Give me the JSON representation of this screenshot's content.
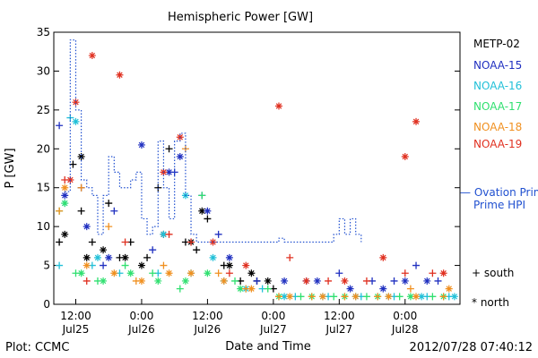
{
  "chart_data": {
    "type": "scatter",
    "title": "Hemispheric Power [GW]",
    "xlabel": "Date and Time",
    "ylabel": "P [GW]",
    "ylim": [
      0,
      35
    ],
    "y_ticks": [
      0,
      5,
      10,
      15,
      20,
      25,
      30,
      35
    ],
    "xlim": [
      "2012-07-25T08:00",
      "2012-07-28T10:00"
    ],
    "x_tick_labels": [
      {
        "time": "2012-07-25T12:00",
        "top": "12:00",
        "bottom": "Jul25"
      },
      {
        "time": "2012-07-26T00:00",
        "top": "0:00",
        "bottom": "Jul26"
      },
      {
        "time": "2012-07-26T12:00",
        "top": "12:00",
        "bottom": "Jul26"
      },
      {
        "time": "2012-07-27T00:00",
        "top": "0:00",
        "bottom": "Jul27"
      },
      {
        "time": "2012-07-27T12:00",
        "top": "12:00",
        "bottom": "Jul27"
      },
      {
        "time": "2012-07-28T00:00",
        "top": "0:00",
        "bottom": "Jul28"
      }
    ],
    "grid": false,
    "legend_position": "right",
    "series": [
      {
        "name": "METP-02",
        "color": "#000000",
        "plus": [
          [
            "2012-07-25T09:00",
            8
          ],
          [
            "2012-07-25T11:30",
            18
          ],
          [
            "2012-07-25T13:00",
            12
          ],
          [
            "2012-07-25T15:00",
            8
          ],
          [
            "2012-07-25T18:00",
            13
          ],
          [
            "2012-07-25T20:00",
            6
          ],
          [
            "2012-07-25T22:00",
            8
          ],
          [
            "2012-07-26T01:00",
            6
          ],
          [
            "2012-07-26T03:00",
            15
          ],
          [
            "2012-07-26T05:00",
            20
          ],
          [
            "2012-07-26T08:00",
            8
          ],
          [
            "2012-07-26T10:00",
            7
          ],
          [
            "2012-07-26T12:00",
            11
          ],
          [
            "2012-07-26T15:00",
            5
          ],
          [
            "2012-07-26T18:00",
            3
          ],
          [
            "2012-07-26T21:00",
            3
          ],
          [
            "2012-07-27T00:00",
            2
          ]
        ],
        "star": [
          [
            "2012-07-25T10:00",
            9
          ],
          [
            "2012-07-25T13:00",
            19
          ],
          [
            "2012-07-25T14:00",
            6
          ],
          [
            "2012-07-25T17:00",
            7
          ],
          [
            "2012-07-25T21:00",
            6
          ],
          [
            "2012-07-26T00:00",
            5
          ],
          [
            "2012-07-26T04:00",
            9
          ],
          [
            "2012-07-26T09:00",
            8
          ],
          [
            "2012-07-26T11:00",
            12
          ],
          [
            "2012-07-26T16:00",
            5
          ],
          [
            "2012-07-26T20:00",
            4
          ],
          [
            "2012-07-26T23:00",
            3
          ]
        ]
      },
      {
        "name": "NOAA-15",
        "color": "#2030c0",
        "plus": [
          [
            "2012-07-25T09:00",
            23
          ],
          [
            "2012-07-25T13:00",
            15
          ],
          [
            "2012-07-25T17:00",
            5
          ],
          [
            "2012-07-25T19:00",
            12
          ],
          [
            "2012-07-26T02:00",
            7
          ],
          [
            "2012-07-26T06:00",
            17
          ],
          [
            "2012-07-26T11:00",
            14
          ],
          [
            "2012-07-26T14:00",
            9
          ],
          [
            "2012-07-26T21:00",
            3
          ],
          [
            "2012-07-27T06:00",
            3
          ],
          [
            "2012-07-27T12:00",
            4
          ],
          [
            "2012-07-27T18:00",
            3
          ],
          [
            "2012-07-27T22:00",
            3
          ],
          [
            "2012-07-28T02:00",
            5
          ],
          [
            "2012-07-28T06:00",
            3
          ]
        ],
        "star": [
          [
            "2012-07-25T10:00",
            14
          ],
          [
            "2012-07-25T14:00",
            10
          ],
          [
            "2012-07-25T18:00",
            6
          ],
          [
            "2012-07-26T00:00",
            20.5
          ],
          [
            "2012-07-26T05:00",
            17
          ],
          [
            "2012-07-26T07:00",
            19
          ],
          [
            "2012-07-26T12:00",
            12
          ],
          [
            "2012-07-26T16:00",
            6
          ],
          [
            "2012-07-27T02:00",
            3
          ],
          [
            "2012-07-27T08:00",
            3
          ],
          [
            "2012-07-27T14:00",
            2
          ],
          [
            "2012-07-27T20:00",
            2
          ],
          [
            "2012-07-28T00:00",
            3
          ],
          [
            "2012-07-28T04:00",
            3
          ]
        ]
      },
      {
        "name": "NOAA-16",
        "color": "#22c0d8",
        "plus": [
          [
            "2012-07-25T09:00",
            5
          ],
          [
            "2012-07-25T11:00",
            24
          ],
          [
            "2012-07-25T15:00",
            5
          ],
          [
            "2012-07-25T20:00",
            4
          ],
          [
            "2012-07-26T03:00",
            4
          ],
          [
            "2012-07-26T09:00",
            4
          ],
          [
            "2012-07-26T15:00",
            3
          ],
          [
            "2012-07-26T22:00",
            2
          ],
          [
            "2012-07-27T04:00",
            1
          ],
          [
            "2012-07-27T10:00",
            1
          ],
          [
            "2012-07-27T16:00",
            1
          ],
          [
            "2012-07-27T22:00",
            1
          ],
          [
            "2012-07-28T04:00",
            1
          ],
          [
            "2012-07-28T08:00",
            1
          ]
        ],
        "star": [
          [
            "2012-07-25T10:00",
            13
          ],
          [
            "2012-07-25T12:00",
            23.5
          ],
          [
            "2012-07-25T16:00",
            6
          ],
          [
            "2012-07-26T04:00",
            9
          ],
          [
            "2012-07-26T08:00",
            14
          ],
          [
            "2012-07-26T13:00",
            6
          ],
          [
            "2012-07-26T19:00",
            2
          ],
          [
            "2012-07-27T02:00",
            1
          ],
          [
            "2012-07-27T09:00",
            1
          ],
          [
            "2012-07-27T15:00",
            1
          ],
          [
            "2012-07-27T21:00",
            1
          ],
          [
            "2012-07-28T03:00",
            1
          ],
          [
            "2012-07-28T09:00",
            1
          ]
        ]
      },
      {
        "name": "NOAA-17",
        "color": "#30e070",
        "plus": [
          [
            "2012-07-25T09:00",
            12
          ],
          [
            "2012-07-25T12:00",
            4
          ],
          [
            "2012-07-25T16:00",
            3
          ],
          [
            "2012-07-25T21:00",
            5
          ],
          [
            "2012-07-26T02:00",
            4
          ],
          [
            "2012-07-26T07:00",
            2
          ],
          [
            "2012-07-26T11:00",
            14
          ],
          [
            "2012-07-26T17:00",
            3
          ],
          [
            "2012-07-26T23:00",
            2
          ],
          [
            "2012-07-27T05:00",
            1
          ],
          [
            "2012-07-27T11:00",
            1
          ],
          [
            "2012-07-27T17:00",
            1
          ],
          [
            "2012-07-27T23:00",
            1
          ],
          [
            "2012-07-28T05:00",
            1
          ]
        ],
        "star": [
          [
            "2012-07-25T10:00",
            13
          ],
          [
            "2012-07-25T13:00",
            4
          ],
          [
            "2012-07-25T17:00",
            3
          ],
          [
            "2012-07-25T22:00",
            4
          ],
          [
            "2012-07-26T03:00",
            3
          ],
          [
            "2012-07-26T08:00",
            3
          ],
          [
            "2012-07-26T12:00",
            4
          ],
          [
            "2012-07-26T18:00",
            2
          ],
          [
            "2012-07-27T01:00",
            1
          ],
          [
            "2012-07-27T07:00",
            1
          ],
          [
            "2012-07-27T13:00",
            1
          ],
          [
            "2012-07-27T19:00",
            1
          ],
          [
            "2012-07-28T01:00",
            1
          ],
          [
            "2012-07-28T07:00",
            1
          ]
        ]
      },
      {
        "name": "NOAA-18",
        "color": "#f09020",
        "plus": [
          [
            "2012-07-25T09:00",
            12
          ],
          [
            "2012-07-25T13:00",
            15
          ],
          [
            "2012-07-25T18:00",
            10
          ],
          [
            "2012-07-25T23:00",
            3
          ],
          [
            "2012-07-26T04:00",
            5
          ],
          [
            "2012-07-26T08:00",
            20
          ],
          [
            "2012-07-26T14:00",
            4
          ],
          [
            "2012-07-26T19:00",
            2
          ],
          [
            "2012-07-27T01:00",
            1
          ],
          [
            "2012-07-27T07:00",
            1
          ],
          [
            "2012-07-27T13:00",
            1
          ],
          [
            "2012-07-27T19:00",
            1
          ],
          [
            "2012-07-28T01:00",
            2
          ],
          [
            "2012-07-28T07:00",
            1
          ]
        ],
        "star": [
          [
            "2012-07-25T10:00",
            15
          ],
          [
            "2012-07-25T14:00",
            5
          ],
          [
            "2012-07-25T19:00",
            4
          ],
          [
            "2012-07-26T00:00",
            3
          ],
          [
            "2012-07-26T05:00",
            4
          ],
          [
            "2012-07-26T09:00",
            4
          ],
          [
            "2012-07-26T15:00",
            3
          ],
          [
            "2012-07-26T20:00",
            2
          ],
          [
            "2012-07-27T03:00",
            1
          ],
          [
            "2012-07-27T09:00",
            1
          ],
          [
            "2012-07-27T15:00",
            1
          ],
          [
            "2012-07-27T21:00",
            1
          ],
          [
            "2012-07-28T02:00",
            1
          ],
          [
            "2012-07-28T08:00",
            2
          ]
        ]
      },
      {
        "name": "NOAA-19",
        "color": "#e03020",
        "plus": [
          [
            "2012-07-25T10:00",
            16
          ],
          [
            "2012-07-25T14:00",
            3
          ],
          [
            "2012-07-25T21:00",
            8
          ],
          [
            "2012-07-26T05:00",
            9
          ],
          [
            "2012-07-26T09:00",
            8
          ],
          [
            "2012-07-26T16:00",
            4
          ],
          [
            "2012-07-27T03:00",
            6
          ],
          [
            "2012-07-27T10:00",
            3
          ],
          [
            "2012-07-27T17:00",
            3
          ],
          [
            "2012-07-28T00:00",
            4
          ],
          [
            "2012-07-28T05:00",
            4
          ]
        ],
        "star": [
          [
            "2012-07-25T11:00",
            16
          ],
          [
            "2012-07-25T12:00",
            26
          ],
          [
            "2012-07-25T15:00",
            32
          ],
          [
            "2012-07-25T20:00",
            29.5
          ],
          [
            "2012-07-26T04:00",
            17
          ],
          [
            "2012-07-26T07:00",
            21.5
          ],
          [
            "2012-07-26T13:00",
            8
          ],
          [
            "2012-07-26T19:00",
            5
          ],
          [
            "2012-07-27T01:00",
            25.5
          ],
          [
            "2012-07-27T06:00",
            3
          ],
          [
            "2012-07-27T13:00",
            3
          ],
          [
            "2012-07-27T20:00",
            6
          ],
          [
            "2012-07-28T00:00",
            19
          ],
          [
            "2012-07-28T02:00",
            23.5
          ],
          [
            "2012-07-28T07:00",
            4
          ]
        ]
      },
      {
        "name": "— Ovation Prime HPI",
        "color": "#2050d0",
        "style": "dotted-step",
        "line": [
          [
            "2012-07-25T10:00",
            14.5
          ],
          [
            "2012-07-25T11:00",
            34
          ],
          [
            "2012-07-25T12:00",
            25
          ],
          [
            "2012-07-25T13:00",
            16
          ],
          [
            "2012-07-25T14:00",
            15
          ],
          [
            "2012-07-25T15:00",
            14
          ],
          [
            "2012-07-25T16:00",
            9
          ],
          [
            "2012-07-25T17:00",
            14
          ],
          [
            "2012-07-25T18:00",
            19
          ],
          [
            "2012-07-25T19:00",
            17
          ],
          [
            "2012-07-25T20:00",
            15
          ],
          [
            "2012-07-25T21:00",
            15
          ],
          [
            "2012-07-25T22:00",
            16
          ],
          [
            "2012-07-25T23:00",
            17
          ],
          [
            "2012-07-26T00:00",
            11
          ],
          [
            "2012-07-26T01:00",
            9
          ],
          [
            "2012-07-26T02:00",
            10
          ],
          [
            "2012-07-26T03:00",
            21
          ],
          [
            "2012-07-26T04:00",
            15
          ],
          [
            "2012-07-26T05:00",
            11
          ],
          [
            "2012-07-26T06:00",
            21
          ],
          [
            "2012-07-26T07:00",
            22
          ],
          [
            "2012-07-26T08:00",
            14
          ],
          [
            "2012-07-26T09:00",
            9
          ],
          [
            "2012-07-26T10:00",
            8
          ],
          [
            "2012-07-26T13:00",
            8
          ],
          [
            "2012-07-26T16:00",
            8
          ],
          [
            "2012-07-26T19:00",
            8
          ],
          [
            "2012-07-26T22:00",
            8
          ],
          [
            "2012-07-27T00:00",
            8
          ],
          [
            "2012-07-27T01:00",
            8.5
          ],
          [
            "2012-07-27T02:00",
            8
          ],
          [
            "2012-07-27T04:00",
            8
          ],
          [
            "2012-07-27T07:00",
            8
          ],
          [
            "2012-07-27T10:00",
            8
          ],
          [
            "2012-07-27T11:00",
            9
          ],
          [
            "2012-07-27T12:00",
            11
          ],
          [
            "2012-07-27T13:00",
            9
          ],
          [
            "2012-07-27T14:00",
            11
          ],
          [
            "2012-07-27T15:00",
            9
          ],
          [
            "2012-07-27T16:00",
            8
          ]
        ]
      }
    ],
    "annotations": [
      {
        "text": "Prime HPI",
        "color": "#2050d0"
      },
      {
        "text": "+ south",
        "color": "#000000"
      },
      {
        "text": "* north",
        "color": "#000000"
      }
    ],
    "footer_left": "Plot: CCMC",
    "footer_right": "2012/07/28 07:40:12"
  }
}
